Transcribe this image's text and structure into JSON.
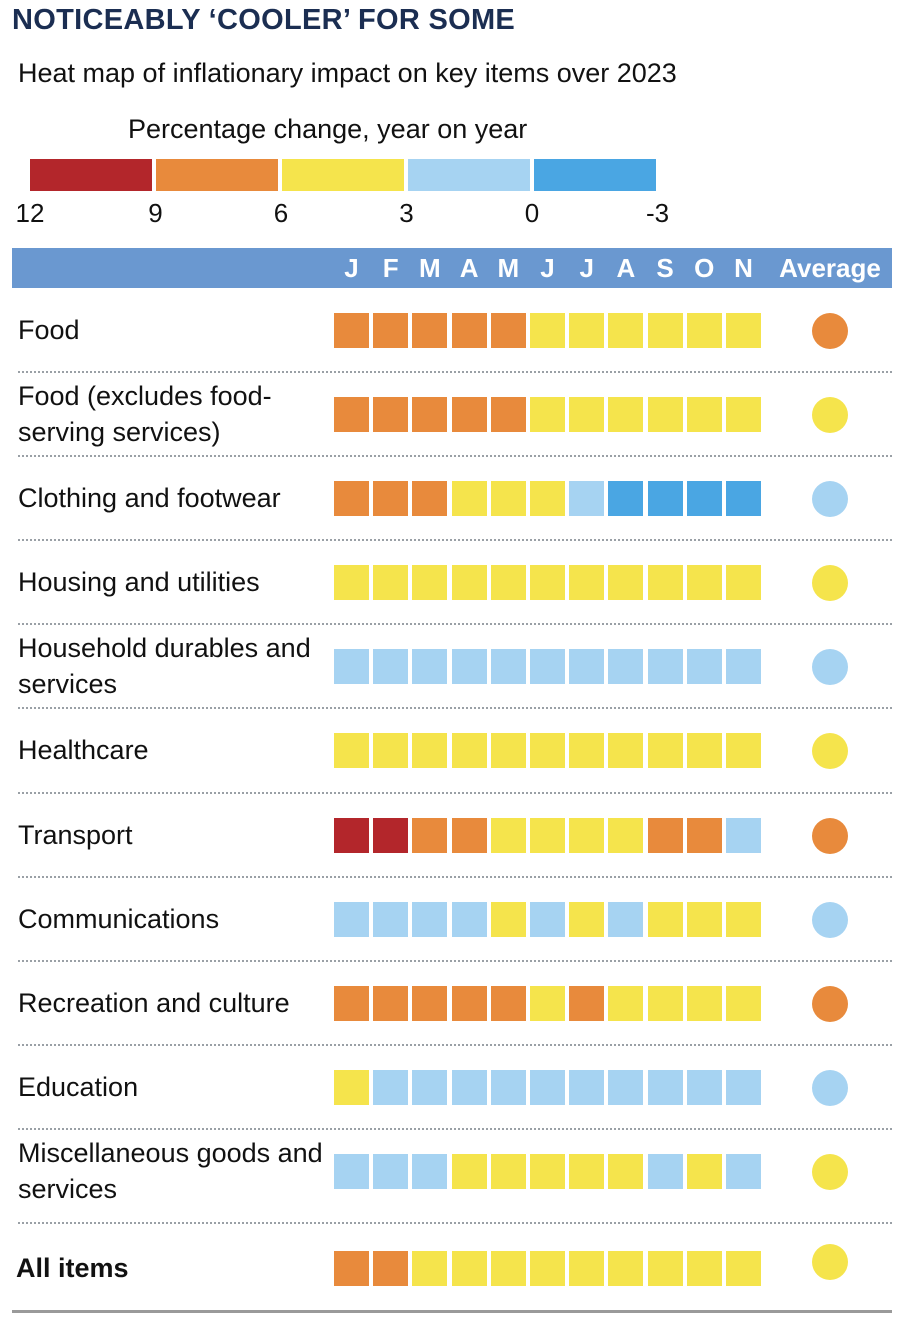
{
  "title": "NOTICEABLY ‘COOLER’ FOR SOME",
  "subtitle": "Heat map of inflationary impact on key items over 2023",
  "colors": {
    "12-9": "#b3262b",
    "9-6": "#e88a3c",
    "6-3": "#f5e44c",
    "3-0": "#a6d3f2",
    "0--3": "#4aa6e3"
  },
  "chart_data": {
    "type": "heatmap",
    "title": "NOTICEABLY ‘COOLER’ FOR SOME",
    "subtitle": "Heat map of inflationary impact on key items over 2023",
    "legend": {
      "title": "Percentage change, year on year",
      "ticks": [
        "12",
        "9",
        "6",
        "3",
        "0",
        "-3"
      ],
      "bins": [
        "12-9",
        "9-6",
        "6-3",
        "3-0",
        "0--3"
      ]
    },
    "columns": [
      "J",
      "F",
      "M",
      "A",
      "M",
      "J",
      "J",
      "A",
      "S",
      "O",
      "N"
    ],
    "average_label": "Average",
    "rows": [
      {
        "label": "Food",
        "bold": false,
        "cells": [
          "9-6",
          "9-6",
          "9-6",
          "9-6",
          "9-6",
          "6-3",
          "6-3",
          "6-3",
          "6-3",
          "6-3",
          "6-3"
        ],
        "average": "9-6"
      },
      {
        "label": "Food (excludes food-serving services)",
        "bold": false,
        "cells": [
          "9-6",
          "9-6",
          "9-6",
          "9-6",
          "9-6",
          "6-3",
          "6-3",
          "6-3",
          "6-3",
          "6-3",
          "6-3"
        ],
        "average": "6-3"
      },
      {
        "label": "Clothing and footwear",
        "bold": false,
        "cells": [
          "9-6",
          "9-6",
          "9-6",
          "6-3",
          "6-3",
          "6-3",
          "3-0",
          "0--3",
          "0--3",
          "0--3",
          "0--3"
        ],
        "average": "3-0"
      },
      {
        "label": "Housing and utilities",
        "bold": false,
        "cells": [
          "6-3",
          "6-3",
          "6-3",
          "6-3",
          "6-3",
          "6-3",
          "6-3",
          "6-3",
          "6-3",
          "6-3",
          "6-3"
        ],
        "average": "6-3"
      },
      {
        "label": "Household durables and services",
        "bold": false,
        "cells": [
          "3-0",
          "3-0",
          "3-0",
          "3-0",
          "3-0",
          "3-0",
          "3-0",
          "3-0",
          "3-0",
          "3-0",
          "3-0"
        ],
        "average": "3-0"
      },
      {
        "label": "Healthcare",
        "bold": false,
        "cells": [
          "6-3",
          "6-3",
          "6-3",
          "6-3",
          "6-3",
          "6-3",
          "6-3",
          "6-3",
          "6-3",
          "6-3",
          "6-3"
        ],
        "average": "6-3"
      },
      {
        "label": "Transport",
        "bold": false,
        "cells": [
          "12-9",
          "12-9",
          "9-6",
          "9-6",
          "6-3",
          "6-3",
          "6-3",
          "6-3",
          "9-6",
          "9-6",
          "3-0"
        ],
        "average": "9-6"
      },
      {
        "label": "Communications",
        "bold": false,
        "cells": [
          "3-0",
          "3-0",
          "3-0",
          "3-0",
          "6-3",
          "3-0",
          "6-3",
          "3-0",
          "6-3",
          "6-3",
          "6-3"
        ],
        "average": "3-0"
      },
      {
        "label": "Recreation and culture",
        "bold": false,
        "cells": [
          "9-6",
          "9-6",
          "9-6",
          "9-6",
          "9-6",
          "6-3",
          "9-6",
          "6-3",
          "6-3",
          "6-3",
          "6-3"
        ],
        "average": "9-6"
      },
      {
        "label": "Education",
        "bold": false,
        "cells": [
          "6-3",
          "3-0",
          "3-0",
          "3-0",
          "3-0",
          "3-0",
          "3-0",
          "3-0",
          "3-0",
          "3-0",
          "3-0"
        ],
        "average": "3-0"
      },
      {
        "label": "Miscellaneous goods and services",
        "bold": false,
        "cells": [
          "3-0",
          "3-0",
          "3-0",
          "6-3",
          "6-3",
          "6-3",
          "6-3",
          "6-3",
          "3-0",
          "6-3",
          "3-0"
        ],
        "average": "6-3"
      },
      {
        "label": "All items",
        "bold": true,
        "cells": [
          "9-6",
          "9-6",
          "6-3",
          "6-3",
          "6-3",
          "6-3",
          "6-3",
          "6-3",
          "6-3",
          "6-3",
          "6-3"
        ],
        "average": "6-3"
      }
    ]
  }
}
